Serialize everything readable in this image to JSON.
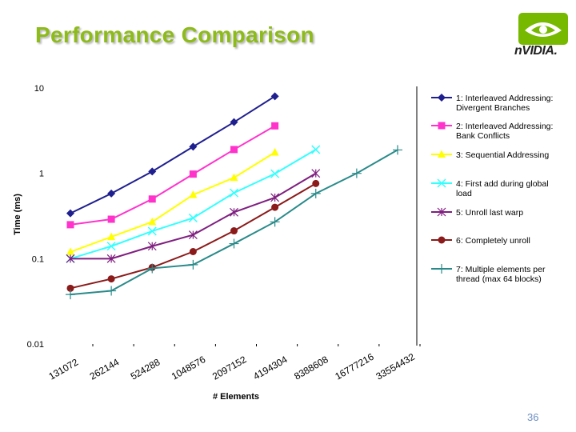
{
  "slide": {
    "title": "Performance Comparison",
    "logo_text": "nVIDIA.",
    "page_number": "36"
  },
  "chart_data": {
    "type": "line",
    "title": "",
    "xlabel": "# Elements",
    "ylabel": "Time (ms)",
    "yscale": "log",
    "ylim": [
      0.01,
      10
    ],
    "yticks": [
      "10",
      "1",
      "0.1",
      "0.01"
    ],
    "ytick_values": [
      10,
      1,
      0.1,
      0.01
    ],
    "categories": [
      "131072",
      "262144",
      "524288",
      "1048576",
      "2097152",
      "4194304",
      "8388608",
      "16777216",
      "33554432"
    ],
    "grid": false,
    "legend_position": "right",
    "series": [
      {
        "name": "1: Interleaved Addressing: Divergent Branches",
        "color": "#1f1f8f",
        "marker": "diamond",
        "values": [
          0.34,
          0.58,
          1.05,
          2.05,
          3.98,
          8.0,
          null,
          null,
          null
        ]
      },
      {
        "name": "2: Interleaved Addressing: Bank Conflicts",
        "color": "#ff33cc",
        "marker": "square",
        "values": [
          0.25,
          0.29,
          0.5,
          0.98,
          1.9,
          3.6,
          null,
          null,
          null
        ]
      },
      {
        "name": "3: Sequential Addressing",
        "color": "#ffff00",
        "marker": "triangle",
        "values": [
          0.12,
          0.18,
          0.27,
          0.56,
          0.89,
          1.76,
          null,
          null,
          null
        ]
      },
      {
        "name": "4: First add during global load",
        "color": "#33ffff",
        "marker": "x",
        "values": [
          0.1,
          0.14,
          0.21,
          0.3,
          0.59,
          0.99,
          1.9,
          null,
          null
        ]
      },
      {
        "name": "5: Unroll last warp",
        "color": "#7f1f7f",
        "marker": "star",
        "values": [
          0.1,
          0.1,
          0.14,
          0.19,
          0.35,
          0.52,
          1.0,
          null,
          null
        ]
      },
      {
        "name": "6: Completely unroll",
        "color": "#8b1a1a",
        "marker": "circle",
        "values": [
          0.045,
          0.058,
          0.079,
          0.121,
          0.212,
          0.4,
          0.76,
          null,
          null
        ]
      },
      {
        "name": "7: Multiple elements per thread (max 64 blocks)",
        "color": "#2a8a8a",
        "marker": "plus",
        "values": [
          0.038,
          0.042,
          0.077,
          0.085,
          0.15,
          0.27,
          0.58,
          1.0,
          1.88
        ]
      }
    ]
  }
}
